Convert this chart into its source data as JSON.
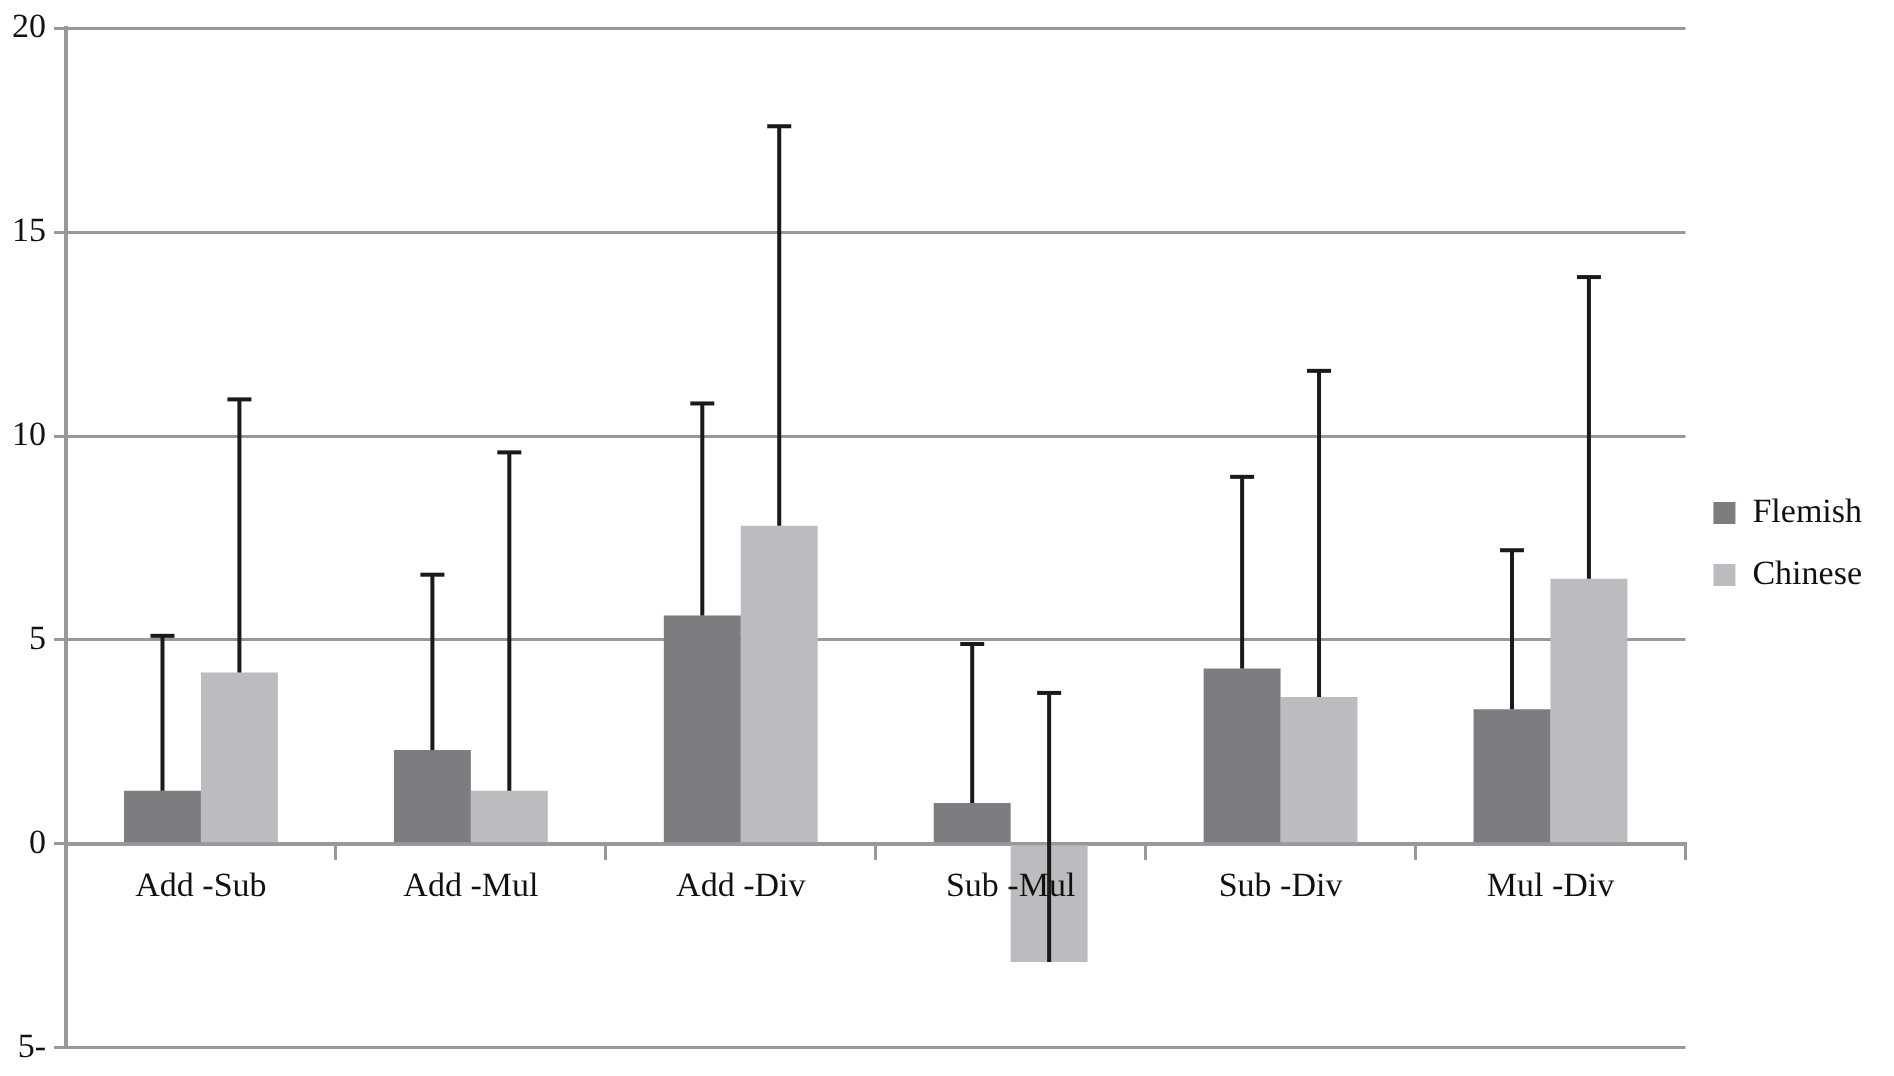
{
  "chart_data": {
    "type": "bar",
    "categories": [
      "Add -Sub",
      "Add -Mul",
      "Add -Div",
      "Sub -Mul",
      "Sub -Div",
      "Mul -Div"
    ],
    "series": [
      {
        "name": "Flemish",
        "color": "#7c7d81",
        "values": [
          1.3,
          2.3,
          5.6,
          1.0,
          4.3,
          3.3
        ],
        "errors": [
          [
            1.3,
            5.1
          ],
          [
            2.3,
            6.6
          ],
          [
            5.6,
            10.8
          ],
          [
            1.0,
            4.9
          ],
          [
            4.3,
            9.0
          ],
          [
            3.3,
            7.2
          ]
        ]
      },
      {
        "name": "Chinese",
        "color": "#bbbcbf",
        "values": [
          4.2,
          1.3,
          7.8,
          -2.9,
          3.6,
          6.5
        ],
        "errors": [
          [
            4.2,
            10.9
          ],
          [
            1.3,
            9.6
          ],
          [
            7.8,
            17.6
          ],
          [
            -2.9,
            3.7
          ],
          [
            3.6,
            11.6
          ],
          [
            6.5,
            13.9
          ]
        ]
      }
    ],
    "ylim": [
      -5,
      20
    ],
    "yticks": [
      {
        "value": -5,
        "label": "5-"
      },
      0,
      5,
      10,
      15,
      20
    ],
    "grid": "y",
    "legend": "right"
  }
}
